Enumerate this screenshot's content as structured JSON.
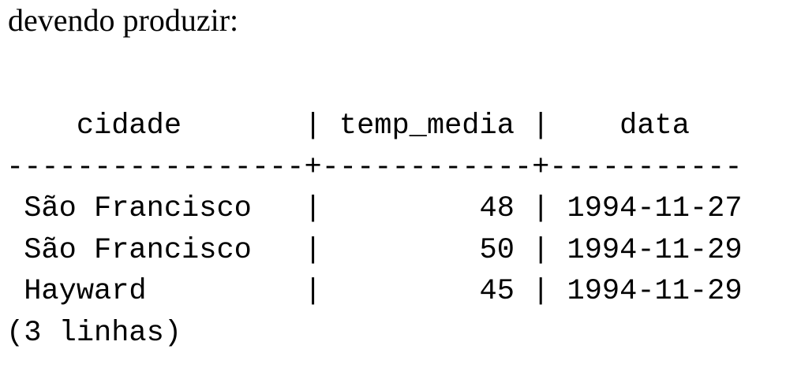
{
  "intro_text": "devendo produzir:",
  "result": {
    "header_line": "    cidade       | temp_media |    data",
    "separator_line": "-----------------+------------+-----------",
    "rows": [
      " São Francisco   |         48 | 1994-11-27",
      " São Francisco   |         50 | 1994-11-29",
      " Hayward         |         45 | 1994-11-29"
    ],
    "footer": "(3 linhas)"
  }
}
